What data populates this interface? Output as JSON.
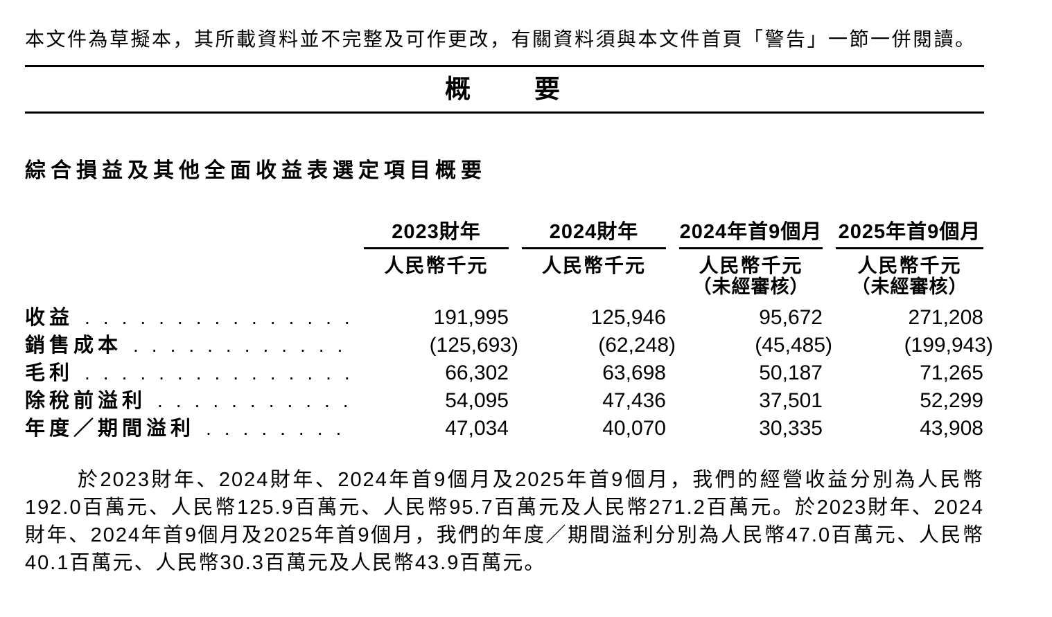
{
  "page": {
    "disclaimer": "本文件為草擬本，其所載資料並不完整及可作更改，有關資料須與本文件首頁「警告」一節一併閱讀。",
    "title": "概　　要",
    "section_heading": "綜合損益及其他全面收益表選定項目概要"
  },
  "table": {
    "leader_dots": "....................................",
    "columns": [
      {
        "period": "2023財年",
        "unit": "人民幣千元",
        "note": ""
      },
      {
        "period": "2024財年",
        "unit": "人民幣千元",
        "note": ""
      },
      {
        "period": "2024年首9個月",
        "unit": "人民幣千元",
        "note": "（未經審核）"
      },
      {
        "period": "2025年首9個月",
        "unit": "人民幣千元",
        "note": "（未經審核）"
      }
    ],
    "rows": [
      {
        "label": "收益",
        "values": [
          "191,995",
          "125,946",
          "95,672",
          "271,208"
        ]
      },
      {
        "label": "銷售成本",
        "values": [
          "(125,693)",
          "(62,248)",
          "(45,485)",
          "(199,943)"
        ]
      },
      {
        "label": "毛利",
        "values": [
          "66,302",
          "63,698",
          "50,187",
          "71,265"
        ]
      },
      {
        "label": "除稅前溢利",
        "values": [
          "54,095",
          "47,436",
          "37,501",
          "52,299"
        ]
      },
      {
        "label": "年度／期間溢利",
        "values": [
          "47,034",
          "40,070",
          "30,335",
          "43,908"
        ]
      }
    ]
  },
  "paragraph": "於2023財年、2024財年、2024年首9個月及2025年首9個月，我們的經營收益分別為人民幣192.0百萬元、人民幣125.9百萬元、人民幣95.7百萬元及人民幣271.2百萬元。於2023財年、2024財年、2024年首9個月及2025年首9個月，我們的年度／期間溢利分別為人民幣47.0百萬元、人民幣40.1百萬元、人民幣30.3百萬元及人民幣43.9百萬元。"
}
